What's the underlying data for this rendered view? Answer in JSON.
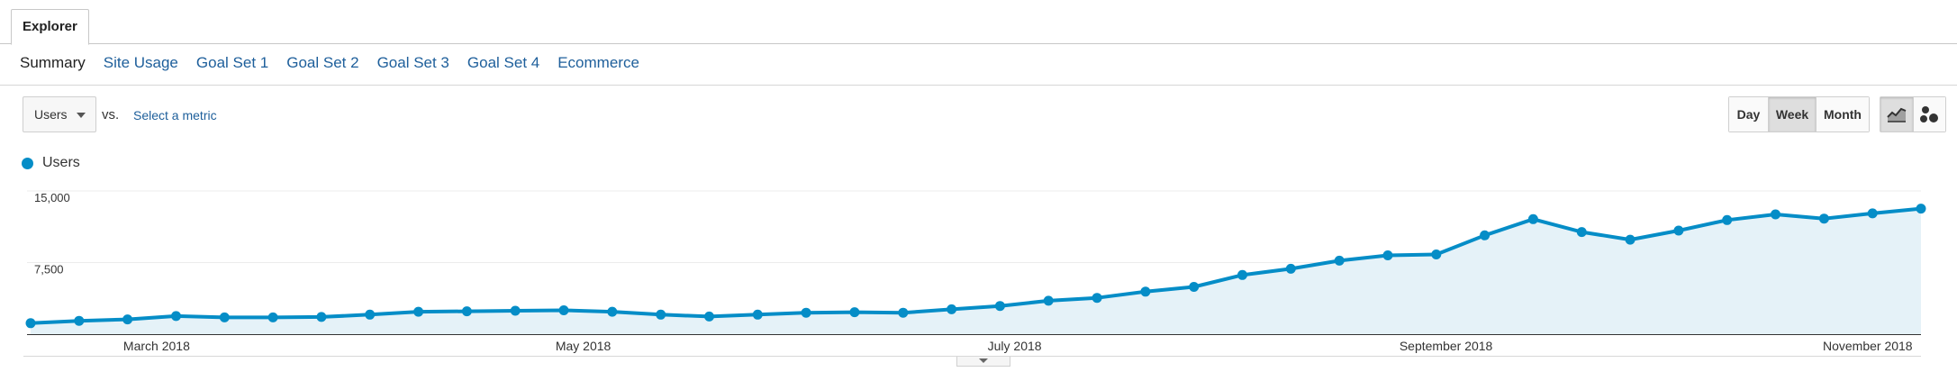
{
  "header": {
    "explorer_tab": "Explorer"
  },
  "subtabs": [
    {
      "label": "Summary",
      "active": true
    },
    {
      "label": "Site Usage",
      "active": false
    },
    {
      "label": "Goal Set 1",
      "active": false
    },
    {
      "label": "Goal Set 2",
      "active": false
    },
    {
      "label": "Goal Set 3",
      "active": false
    },
    {
      "label": "Goal Set 4",
      "active": false
    },
    {
      "label": "Ecommerce",
      "active": false
    }
  ],
  "controls": {
    "metric_selected": "Users",
    "vs_label": "vs.",
    "select_metric_link": "Select a metric",
    "periods": [
      {
        "label": "Day",
        "active": false
      },
      {
        "label": "Week",
        "active": true
      },
      {
        "label": "Month",
        "active": false
      }
    ],
    "views": [
      {
        "icon": "line-chart-icon",
        "active": true
      },
      {
        "icon": "motion-chart-icon",
        "active": false
      }
    ]
  },
  "legend": {
    "label": "Users",
    "color": "#058dc7"
  },
  "chart_data": {
    "type": "area",
    "series": [
      {
        "name": "Users",
        "color": "#058dc7",
        "values": [
          1150,
          1400,
          1550,
          1900,
          1750,
          1750,
          1800,
          2050,
          2350,
          2400,
          2450,
          2500,
          2350,
          2050,
          1850,
          2050,
          2250,
          2300,
          2250,
          2600,
          2950,
          3500,
          3800,
          4450,
          4950,
          6200,
          6850,
          7700,
          8250,
          8350,
          10350,
          12050,
          10700,
          9900,
          10850,
          11950,
          12550,
          12100,
          12650,
          13150
        ]
      }
    ],
    "x_labels": [
      {
        "label": "March 2018",
        "index": 2.6
      },
      {
        "label": "May 2018",
        "index": 11.4
      },
      {
        "label": "July 2018",
        "index": 20.3
      },
      {
        "label": "September 2018",
        "index": 29.2
      },
      {
        "label": "November 2018",
        "index": 37.9
      }
    ],
    "y_ticks": [
      {
        "label": "15,000",
        "value": 15000
      },
      {
        "label": "7,500",
        "value": 7500
      }
    ],
    "ylim": [
      0,
      15000
    ],
    "grid": true,
    "legend_position": "top-left"
  }
}
